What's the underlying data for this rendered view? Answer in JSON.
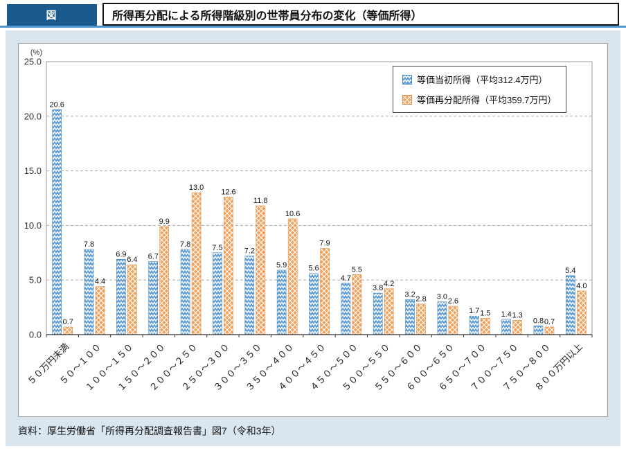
{
  "header": {
    "tag": "図",
    "title": "所得再分配による所得階級別の世帯員分布の変化（等価所得）"
  },
  "source": "資料：厚生労働省「所得再分配調査報告書」図7（令和3年）",
  "colors": {
    "header_bg": "#1a5a8c",
    "accent_rule": "#4e96cc",
    "panel_bg": "#d9e6f0",
    "bar_initial": "#5d9bd3",
    "bar_redistributed": "#f2a25c",
    "grid": "#aaaaaa"
  },
  "chart_data": {
    "type": "bar",
    "title": "所得再分配による所得階級別の世帯員分布の変化（等価所得）",
    "unit_label": "(%)",
    "xlabel": "",
    "ylabel": "(%)",
    "ylim": [
      0,
      25
    ],
    "ytick_step": 5,
    "grid": true,
    "legend_position": "top-right",
    "value_labels": true,
    "categories": [
      "５０万円未満",
      "５０～１００",
      "１００～１５０",
      "１５０～２００",
      "２００～２５０",
      "２５０～３００",
      "３００～３５０",
      "３５０～４００",
      "４００～４５０",
      "４５０～５００",
      "５００～５５０",
      "５５０～６００",
      "６００～６５０",
      "６５０～７００",
      "７００～７５０",
      "７５０～８００",
      "８００万円以上"
    ],
    "series": [
      {
        "name": "等価当初所得（平均312.4万円）",
        "values": [
          20.6,
          7.8,
          6.9,
          6.7,
          7.8,
          7.5,
          7.2,
          5.9,
          5.6,
          4.7,
          3.8,
          3.2,
          3.0,
          1.7,
          1.4,
          0.8,
          5.4
        ]
      },
      {
        "name": "等価再分配所得（平均359.7万円）",
        "values": [
          0.7,
          4.4,
          6.4,
          9.9,
          13.0,
          12.6,
          11.8,
          10.6,
          7.9,
          5.5,
          4.2,
          2.8,
          2.6,
          1.5,
          1.3,
          0.7,
          4.0
        ]
      }
    ]
  }
}
